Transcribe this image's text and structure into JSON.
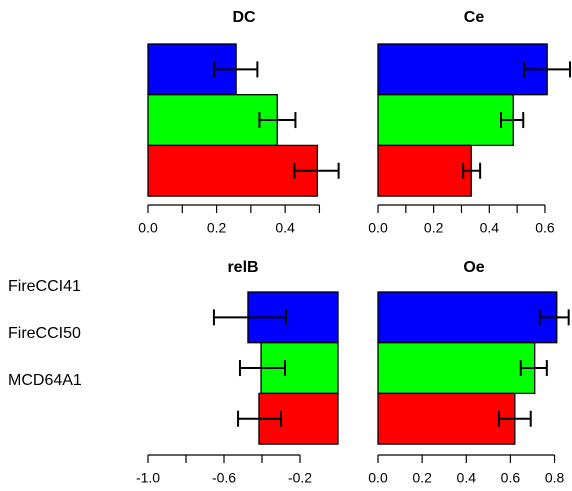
{
  "chart_data": [
    {
      "type": "bar",
      "orientation": "horizontal",
      "title": "DC",
      "xlim": [
        0,
        0.56
      ],
      "xticks": [
        {
          "value": 0,
          "label": "0.0"
        },
        {
          "value": 0.2,
          "label": "0.2"
        },
        {
          "value": 0.4,
          "label": "0.4"
        }
      ],
      "xminor_ticks": [
        0.1,
        0.3,
        0.5
      ],
      "series": [
        {
          "name": "FireCCI41",
          "color": "#0000ff",
          "values": [
            0.257
          ],
          "error_low": [
            0.193
          ],
          "error_high": [
            0.319
          ]
        },
        {
          "name": "FireCCI50",
          "color": "#00ff00",
          "values": [
            0.377
          ],
          "error_low": [
            0.325
          ],
          "error_high": [
            0.43
          ]
        },
        {
          "name": "MCD64A1",
          "color": "#ff0000",
          "values": [
            0.494
          ],
          "error_low": [
            0.427
          ],
          "error_high": [
            0.556
          ]
        }
      ]
    },
    {
      "type": "bar",
      "orientation": "horizontal",
      "title": "Ce",
      "xlim": [
        0,
        0.69
      ],
      "xticks": [
        {
          "value": 0,
          "label": "0.0"
        },
        {
          "value": 0.2,
          "label": "0.2"
        },
        {
          "value": 0.4,
          "label": "0.4"
        },
        {
          "value": 0.6,
          "label": "0.6"
        }
      ],
      "xminor_ticks": [
        0.1,
        0.3,
        0.5
      ],
      "series": [
        {
          "color": "#0000ff",
          "values": [
            0.608
          ],
          "error_low": [
            0.525
          ],
          "error_high": [
            0.69
          ]
        },
        {
          "color": "#00ff00",
          "values": [
            0.486
          ],
          "error_low": [
            0.442
          ],
          "error_high": [
            0.522
          ]
        },
        {
          "color": "#ff0000",
          "values": [
            0.335
          ],
          "error_low": [
            0.306
          ],
          "error_high": [
            0.367
          ]
        }
      ]
    },
    {
      "type": "bar",
      "orientation": "horizontal",
      "title": "relB",
      "xlim": [
        -1,
        0
      ],
      "xticks": [
        {
          "value": -1,
          "label": "-1.0"
        },
        {
          "value": -0.6,
          "label": "-0.6"
        },
        {
          "value": -0.2,
          "label": "-0.2"
        }
      ],
      "xminor_ticks": [
        -0.8,
        -0.4
      ],
      "series": [
        {
          "color": "#0000ff",
          "values": [
            -0.474
          ],
          "error_low": [
            -0.653
          ],
          "error_high": [
            -0.274
          ]
        },
        {
          "color": "#00ff00",
          "values": [
            -0.405
          ],
          "error_low": [
            -0.516
          ],
          "error_high": [
            -0.279
          ]
        },
        {
          "color": "#ff0000",
          "values": [
            -0.416
          ],
          "error_low": [
            -0.526
          ],
          "error_high": [
            -0.3
          ]
        }
      ]
    },
    {
      "type": "bar",
      "orientation": "horizontal",
      "title": "Oe",
      "xlim": [
        0,
        0.87
      ],
      "xticks": [
        {
          "value": 0,
          "label": "0.0"
        },
        {
          "value": 0.2,
          "label": "0.2"
        },
        {
          "value": 0.4,
          "label": "0.4"
        },
        {
          "value": 0.6,
          "label": "0.6"
        },
        {
          "value": 0.8,
          "label": "0.8"
        }
      ],
      "series": [
        {
          "color": "#0000ff",
          "values": [
            0.81
          ],
          "error_low": [
            0.733
          ],
          "error_high": [
            0.864
          ]
        },
        {
          "color": "#00ff00",
          "values": [
            0.71
          ],
          "error_low": [
            0.647
          ],
          "error_high": [
            0.765
          ]
        },
        {
          "color": "#ff0000",
          "values": [
            0.62
          ],
          "error_low": [
            0.548
          ],
          "error_high": [
            0.692
          ]
        }
      ]
    }
  ]
}
